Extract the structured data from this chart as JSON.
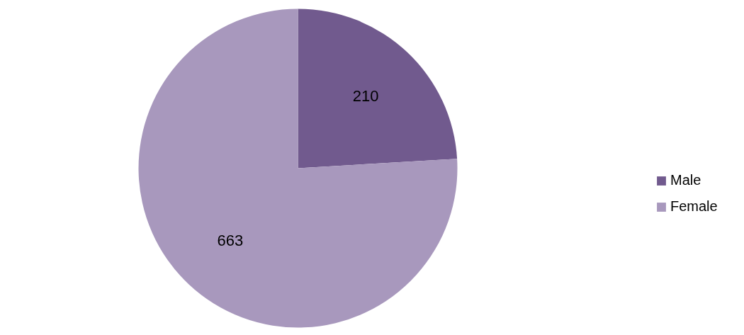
{
  "chart_data": {
    "type": "pie",
    "categories": [
      "Male",
      "Female"
    ],
    "values": [
      210,
      663
    ],
    "colors": [
      "#715a8e",
      "#a898bd"
    ],
    "data_labels": true,
    "legend": "right"
  }
}
